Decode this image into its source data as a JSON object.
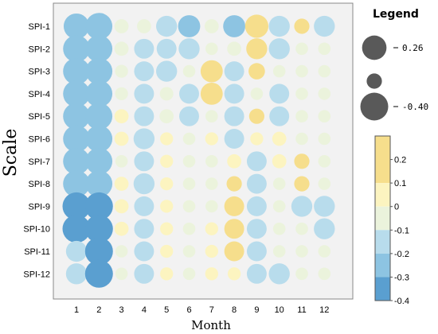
{
  "chart_data": {
    "type": "bubble-heatmap",
    "xlabel": "Month",
    "ylabel": "Scale",
    "x_categories": [
      "1",
      "2",
      "3",
      "4",
      "5",
      "6",
      "7",
      "8",
      "9",
      "10",
      "11",
      "12"
    ],
    "y_categories": [
      "SPI-1",
      "SPI-2",
      "SPI-3",
      "SPI-4",
      "SPI-5",
      "SPI-6",
      "SPI-7",
      "SPI-8",
      "SPI-9",
      "SPI-10",
      "SPI-11",
      "SPI-12"
    ],
    "values": [
      [
        -0.28,
        -0.3,
        -0.08,
        -0.08,
        -0.2,
        -0.22,
        -0.08,
        -0.22,
        0.24,
        -0.2,
        0.1,
        -0.2
      ],
      [
        -0.3,
        -0.3,
        -0.08,
        -0.18,
        -0.18,
        -0.2,
        -0.05,
        -0.08,
        0.2,
        -0.2,
        -0.05,
        -0.05
      ],
      [
        -0.3,
        -0.3,
        -0.06,
        -0.18,
        -0.2,
        -0.05,
        0.22,
        -0.18,
        0.12,
        -0.05,
        -0.05,
        -0.05
      ],
      [
        -0.3,
        -0.3,
        -0.06,
        -0.18,
        -0.07,
        -0.18,
        0.22,
        -0.18,
        -0.05,
        -0.18,
        -0.05,
        -0.05
      ],
      [
        -0.3,
        -0.3,
        0.08,
        -0.18,
        -0.08,
        -0.18,
        -0.05,
        -0.18,
        0.1,
        -0.18,
        -0.05,
        -0.05
      ],
      [
        -0.3,
        -0.3,
        0.08,
        -0.2,
        0.06,
        -0.05,
        0.06,
        -0.18,
        0.06,
        0.08,
        -0.05,
        -0.05
      ],
      [
        -0.3,
        -0.3,
        -0.05,
        -0.18,
        0.06,
        -0.05,
        -0.05,
        0.08,
        -0.18,
        0.08,
        0.1,
        -0.05
      ],
      [
        -0.3,
        -0.3,
        0.08,
        -0.2,
        0.06,
        -0.05,
        -0.05,
        0.1,
        -0.18,
        -0.05,
        0.1,
        -0.05
      ],
      [
        -0.32,
        -0.32,
        0.08,
        -0.18,
        0.06,
        -0.05,
        -0.05,
        0.18,
        -0.18,
        -0.05,
        -0.2,
        -0.2
      ],
      [
        -0.32,
        -0.32,
        0.08,
        -0.18,
        0.06,
        -0.05,
        0.06,
        0.18,
        -0.18,
        -0.05,
        -0.05,
        -0.2
      ],
      [
        -0.2,
        -0.32,
        -0.05,
        -0.18,
        0.06,
        -0.05,
        0.06,
        0.18,
        -0.18,
        -0.05,
        -0.05,
        -0.05
      ],
      [
        -0.2,
        -0.32,
        -0.05,
        -0.18,
        0.06,
        -0.05,
        0.06,
        0.06,
        -0.18,
        -0.2,
        -0.05,
        -0.05
      ]
    ],
    "size_legend": {
      "title": "Legend",
      "items": [
        {
          "label": "0.26",
          "value": 0.26
        },
        {
          "label": "",
          "value": 0.1
        },
        {
          "label": "-0.40",
          "value": -0.4
        }
      ]
    },
    "colorbar": {
      "ticks": [
        "0.2",
        "0.1",
        "0",
        "-0.1",
        "-0.2",
        "-0.3",
        "-0.4"
      ],
      "bands": [
        {
          "from": 0.1,
          "to": 0.3,
          "color": "#f6de8c"
        },
        {
          "from": 0.0,
          "to": 0.1,
          "color": "#fcf4c0"
        },
        {
          "from": -0.1,
          "to": 0.0,
          "color": "#ebf3dc"
        },
        {
          "from": -0.2,
          "to": -0.1,
          "color": "#b8dcec"
        },
        {
          "from": -0.3,
          "to": -0.2,
          "color": "#8dc4e2"
        },
        {
          "from": -0.4,
          "to": -0.3,
          "color": "#5a9fd0"
        }
      ]
    },
    "grid": true
  }
}
